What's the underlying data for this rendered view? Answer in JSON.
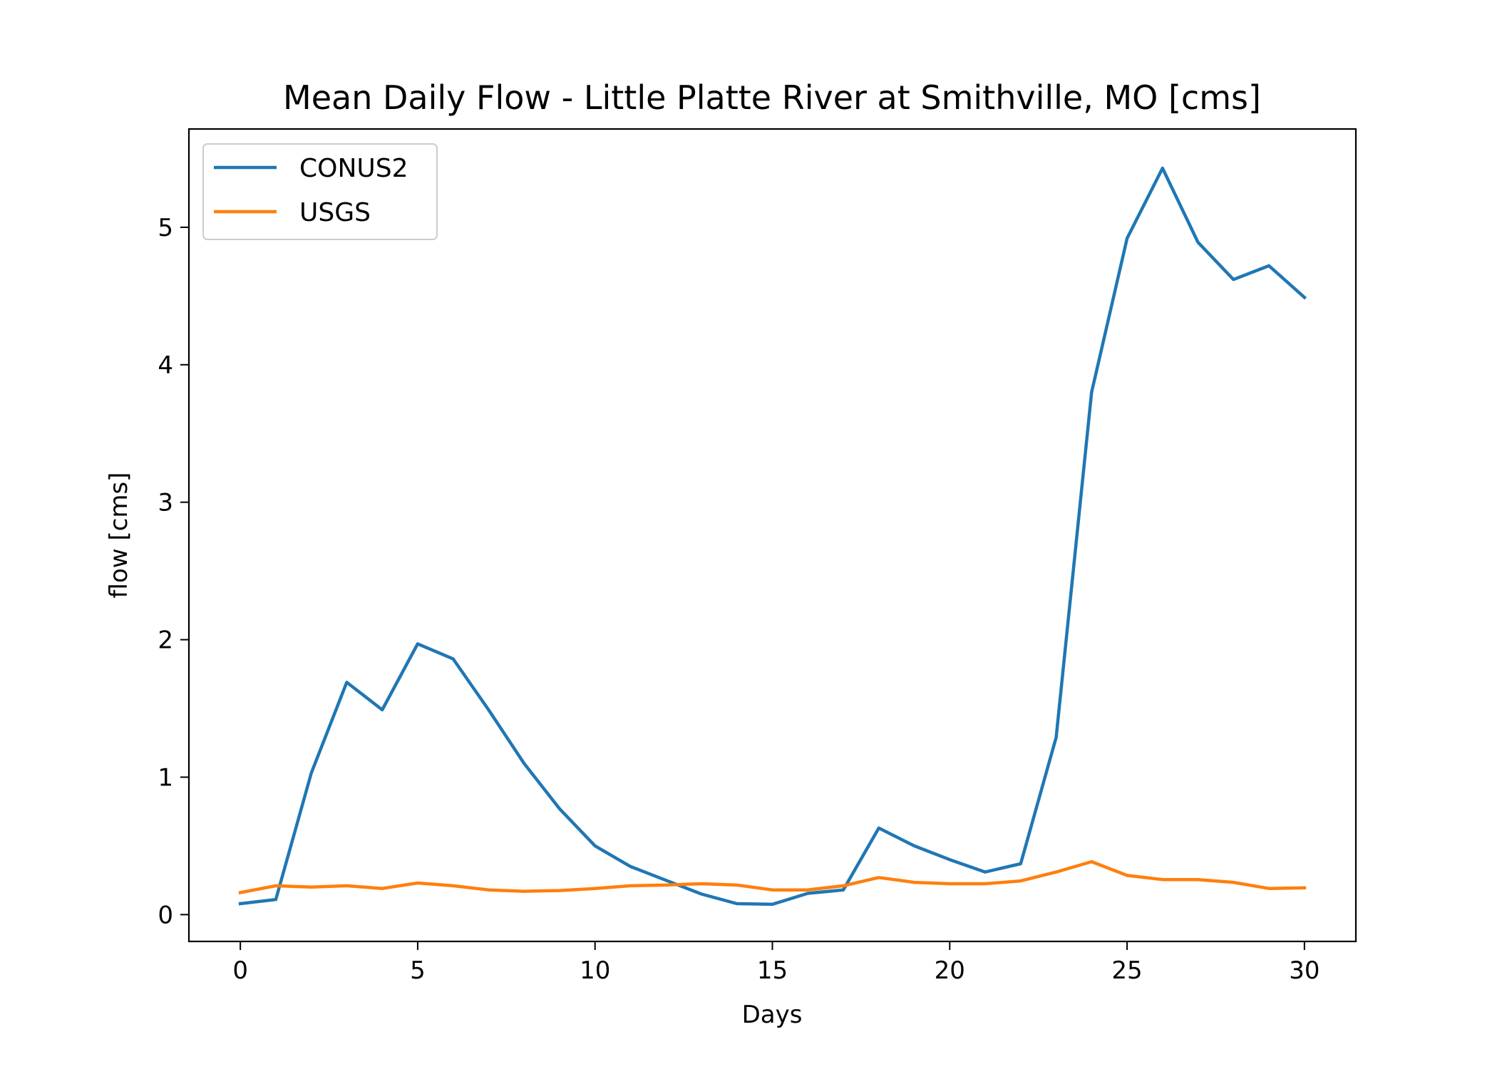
{
  "chart_data": {
    "type": "line",
    "title": "Mean Daily Flow - Little Platte River at Smithville, MO [cms]",
    "xlabel": "Days",
    "ylabel": "flow [cms]",
    "xlim": [
      -1.45,
      31.45
    ],
    "ylim": [
      -0.195,
      5.715
    ],
    "xticks": [
      0,
      5,
      10,
      15,
      20,
      25,
      30
    ],
    "yticks": [
      0,
      1,
      2,
      3,
      4,
      5
    ],
    "grid": false,
    "legend": "upper-left",
    "x": [
      0,
      1,
      2,
      3,
      4,
      5,
      6,
      7,
      8,
      9,
      10,
      11,
      12,
      13,
      14,
      15,
      16,
      17,
      18,
      19,
      20,
      21,
      22,
      23,
      24,
      25,
      26,
      27,
      28,
      29,
      30
    ],
    "series": [
      {
        "name": "CONUS2",
        "color": "#1f77b4",
        "values": [
          0.08,
          0.11,
          1.03,
          1.69,
          1.49,
          1.97,
          1.86,
          1.49,
          1.1,
          0.77,
          0.5,
          0.35,
          0.25,
          0.15,
          0.08,
          0.075,
          0.155,
          0.18,
          0.63,
          0.5,
          0.4,
          0.31,
          0.37,
          1.29,
          3.8,
          4.92,
          5.43,
          4.89,
          4.62,
          4.72,
          4.49
        ]
      },
      {
        "name": "USGS",
        "color": "#ff7f0e",
        "values": [
          0.16,
          0.21,
          0.2,
          0.21,
          0.19,
          0.23,
          0.21,
          0.18,
          0.17,
          0.175,
          0.19,
          0.21,
          0.215,
          0.225,
          0.215,
          0.18,
          0.18,
          0.21,
          0.27,
          0.235,
          0.225,
          0.225,
          0.245,
          0.31,
          0.385,
          0.285,
          0.255,
          0.255,
          0.235,
          0.19,
          0.195
        ]
      }
    ]
  }
}
